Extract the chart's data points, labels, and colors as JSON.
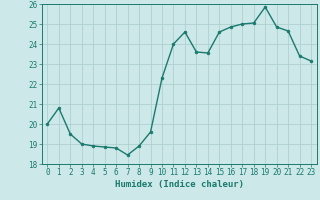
{
  "x": [
    0,
    1,
    2,
    3,
    4,
    5,
    6,
    7,
    8,
    9,
    10,
    11,
    12,
    13,
    14,
    15,
    16,
    17,
    18,
    19,
    20,
    21,
    22,
    23
  ],
  "y": [
    20.0,
    20.8,
    19.5,
    19.0,
    18.9,
    18.85,
    18.8,
    18.45,
    18.9,
    19.6,
    22.3,
    24.0,
    24.6,
    23.6,
    23.55,
    24.6,
    24.85,
    25.0,
    25.05,
    25.85,
    24.85,
    24.65,
    23.4,
    23.15
  ],
  "line_color": "#1a7a6e",
  "marker": "o",
  "marker_size": 2.0,
  "bg_color": "#cce8e8",
  "grid_color": "#aacccc",
  "tick_color": "#1a7a6e",
  "xlabel": "Humidex (Indice chaleur)",
  "xlabel_fontsize": 6.5,
  "tick_fontsize": 5.5,
  "ylim": [
    18,
    26
  ],
  "yticks": [
    18,
    19,
    20,
    21,
    22,
    23,
    24,
    25,
    26
  ],
  "xticks": [
    0,
    1,
    2,
    3,
    4,
    5,
    6,
    7,
    8,
    9,
    10,
    11,
    12,
    13,
    14,
    15,
    16,
    17,
    18,
    19,
    20,
    21,
    22,
    23
  ],
  "line_width": 1.0
}
